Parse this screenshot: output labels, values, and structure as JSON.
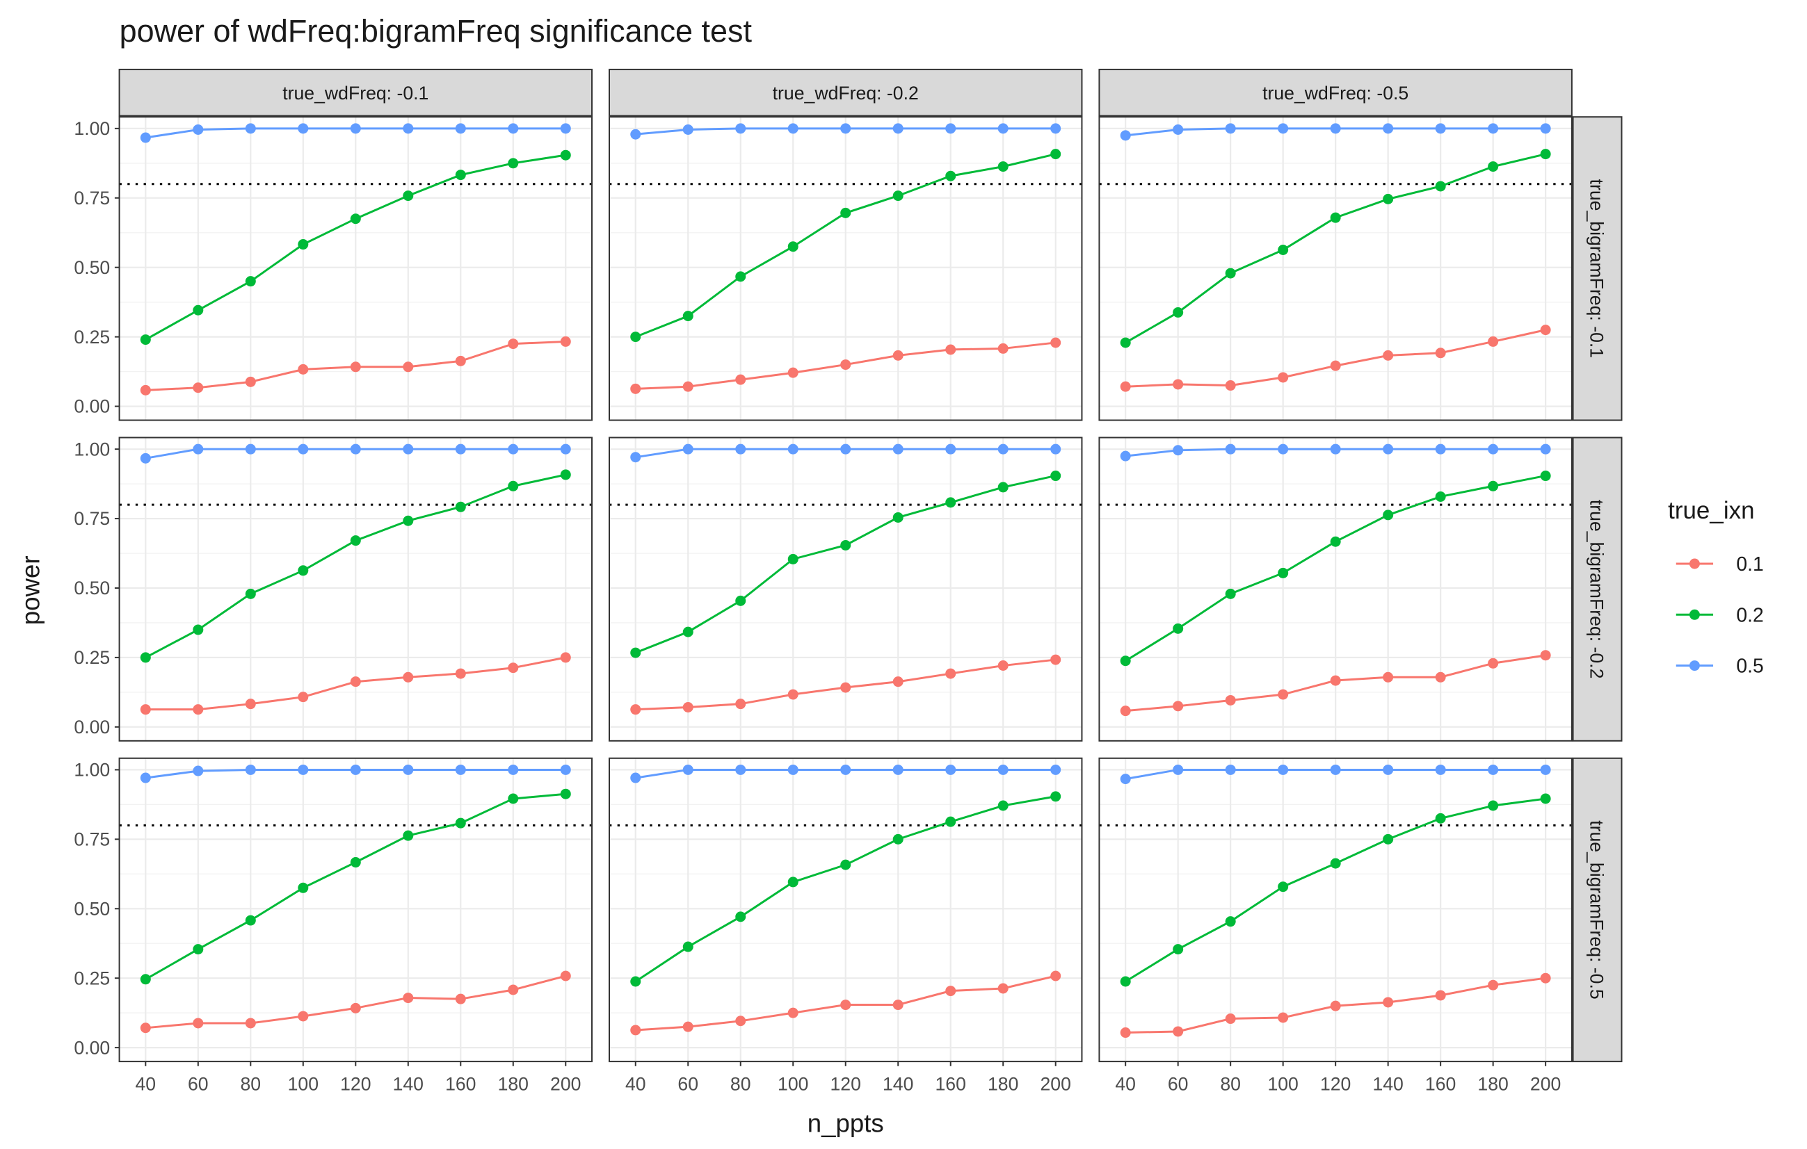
{
  "chart_data": {
    "type": "line",
    "title": "power of wdFreq:bigramFreq significance test",
    "xlabel": "n_ppts",
    "ylabel": "power",
    "x": [
      40,
      60,
      80,
      100,
      120,
      140,
      160,
      180,
      200
    ],
    "x_ticks": [
      "40",
      "60",
      "80",
      "100",
      "120",
      "140",
      "160",
      "180",
      "200"
    ],
    "y_ticks": [
      "0.00",
      "0.25",
      "0.50",
      "0.75",
      "1.00"
    ],
    "ylim": [
      0,
      1
    ],
    "reference_line": 0.8,
    "col_facet_labels": [
      "true_wdFreq: -0.1",
      "true_wdFreq: -0.2",
      "true_wdFreq: -0.5"
    ],
    "row_facet_labels": [
      "true_bigramFreq: -0.1",
      "true_bigramFreq: -0.2",
      "true_bigramFreq: -0.5"
    ],
    "legend": {
      "title": "true_ixn",
      "placement": "right",
      "entries": [
        {
          "label": "0.1",
          "color": "#F8766D"
        },
        {
          "label": "0.2",
          "color": "#00BA38"
        },
        {
          "label": "0.5",
          "color": "#619CFF"
        }
      ]
    },
    "panels": [
      [
        {
          "0.1": [
            0.058,
            0.067,
            0.088,
            0.133,
            0.142,
            0.142,
            0.163,
            0.225,
            0.233
          ],
          "0.2": [
            0.24,
            0.346,
            0.45,
            0.583,
            0.675,
            0.758,
            0.833,
            0.875,
            0.904
          ],
          "0.5": [
            0.967,
            0.996,
            1,
            1,
            1,
            1,
            1,
            1,
            1
          ]
        },
        {
          "0.1": [
            0.063,
            0.071,
            0.096,
            0.121,
            0.15,
            0.183,
            0.204,
            0.208,
            0.229
          ],
          "0.2": [
            0.25,
            0.325,
            0.467,
            0.575,
            0.696,
            0.758,
            0.829,
            0.863,
            0.908
          ],
          "0.5": [
            0.979,
            0.996,
            1,
            1,
            1,
            1,
            1,
            1,
            1
          ]
        },
        {
          "0.1": [
            0.071,
            0.079,
            0.075,
            0.104,
            0.146,
            0.183,
            0.192,
            0.233,
            0.275
          ],
          "0.2": [
            0.229,
            0.338,
            0.479,
            0.563,
            0.679,
            0.746,
            0.792,
            0.863,
            0.908
          ],
          "0.5": [
            0.975,
            0.996,
            1,
            1,
            1,
            1,
            1,
            1,
            1
          ]
        }
      ],
      [
        {
          "0.1": [
            0.063,
            0.063,
            0.083,
            0.108,
            0.163,
            0.179,
            0.192,
            0.213,
            0.25
          ],
          "0.2": [
            0.25,
            0.35,
            0.479,
            0.563,
            0.671,
            0.742,
            0.792,
            0.867,
            0.908
          ],
          "0.5": [
            0.967,
            1,
            1,
            1,
            1,
            1,
            1,
            1,
            1
          ]
        },
        {
          "0.1": [
            0.063,
            0.071,
            0.083,
            0.117,
            0.142,
            0.163,
            0.192,
            0.221,
            0.242
          ],
          "0.2": [
            0.267,
            0.342,
            0.454,
            0.604,
            0.654,
            0.754,
            0.808,
            0.863,
            0.904
          ],
          "0.5": [
            0.971,
            1,
            1,
            1,
            1,
            1,
            1,
            1,
            1
          ]
        },
        {
          "0.1": [
            0.058,
            0.075,
            0.096,
            0.117,
            0.167,
            0.179,
            0.179,
            0.229,
            0.258
          ],
          "0.2": [
            0.238,
            0.354,
            0.479,
            0.554,
            0.667,
            0.763,
            0.829,
            0.867,
            0.904
          ],
          "0.5": [
            0.975,
            0.996,
            1,
            1,
            1,
            1,
            1,
            1,
            1
          ]
        }
      ],
      [
        {
          "0.1": [
            0.071,
            0.088,
            0.088,
            0.113,
            0.142,
            0.179,
            0.175,
            0.208,
            0.258
          ],
          "0.2": [
            0.246,
            0.354,
            0.458,
            0.575,
            0.667,
            0.763,
            0.808,
            0.896,
            0.913
          ],
          "0.5": [
            0.971,
            0.996,
            1,
            1,
            1,
            1,
            1,
            1,
            1
          ]
        },
        {
          "0.1": [
            0.063,
            0.075,
            0.096,
            0.125,
            0.154,
            0.154,
            0.204,
            0.213,
            0.258
          ],
          "0.2": [
            0.238,
            0.363,
            0.471,
            0.596,
            0.658,
            0.75,
            0.813,
            0.871,
            0.904
          ],
          "0.5": [
            0.971,
            1,
            1,
            1,
            1,
            1,
            1,
            1,
            1
          ]
        },
        {
          "0.1": [
            0.054,
            0.058,
            0.104,
            0.108,
            0.15,
            0.163,
            0.188,
            0.225,
            0.25
          ],
          "0.2": [
            0.238,
            0.354,
            0.454,
            0.579,
            0.663,
            0.75,
            0.825,
            0.871,
            0.896
          ],
          "0.5": [
            0.967,
            1,
            1,
            1,
            1,
            1,
            1,
            1,
            1
          ]
        }
      ]
    ]
  }
}
